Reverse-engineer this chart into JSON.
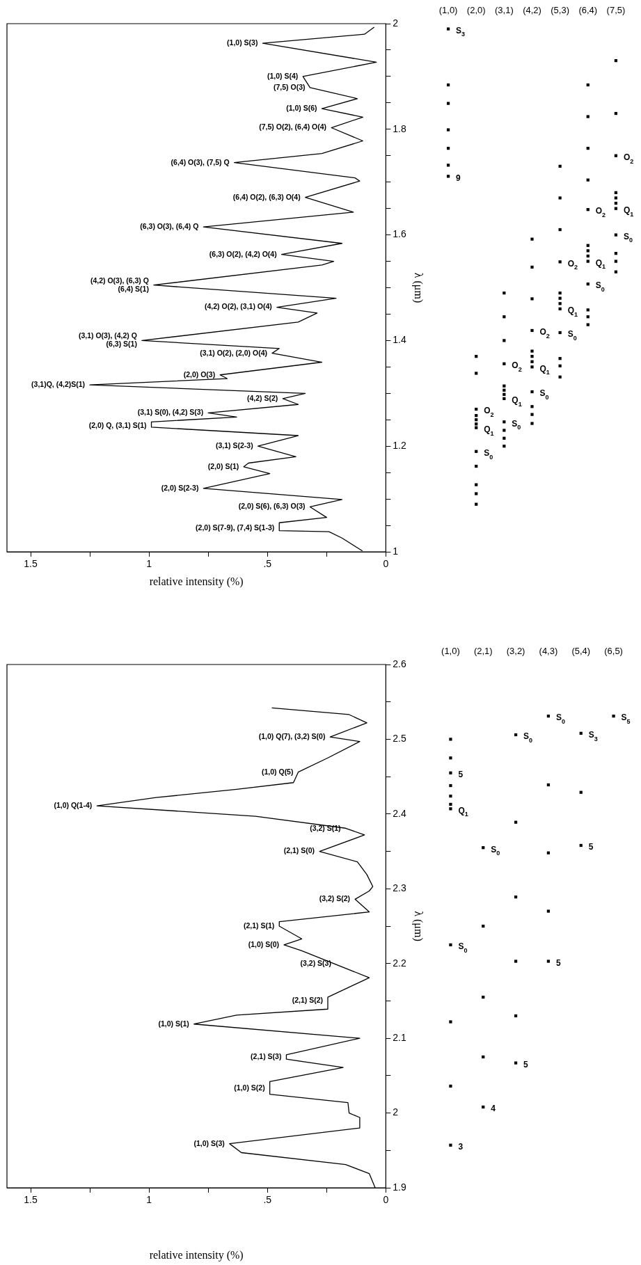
{
  "chart_data": [
    {
      "type": "line",
      "orientation": "horizontal",
      "xlabel": "relative intensity (%)",
      "ylabel": "λ (μm)",
      "color": "#000000",
      "x": [
        1.002,
        1.026,
        1.038,
        1.04,
        1.055,
        1.065,
        1.085,
        1.099,
        1.12,
        1.148,
        1.161,
        1.168,
        1.18,
        1.2,
        1.22,
        1.236,
        1.246,
        1.255,
        1.263,
        1.279,
        1.29,
        1.3,
        1.316,
        1.328,
        1.335,
        1.359,
        1.376,
        1.385,
        1.4,
        1.435,
        1.452,
        1.463,
        1.48,
        1.505,
        1.543,
        1.55,
        1.563,
        1.584,
        1.615,
        1.643,
        1.671,
        1.702,
        1.708,
        1.737,
        1.754,
        1.778,
        1.803,
        1.823,
        1.839,
        1.858,
        1.879,
        1.9,
        1.927,
        1.963,
        1.98,
        1.993
      ],
      "values": [
        0.1,
        0.185,
        0.24,
        0.45,
        0.45,
        0.25,
        0.32,
        0.185,
        0.77,
        0.49,
        0.6,
        0.58,
        0.38,
        0.54,
        0.37,
        0.99,
        0.99,
        0.63,
        0.75,
        0.37,
        0.435,
        0.34,
        1.25,
        0.67,
        0.7,
        0.27,
        0.48,
        0.45,
        1.03,
        0.37,
        0.29,
        0.46,
        0.21,
        0.98,
        0.27,
        0.22,
        0.44,
        0.185,
        0.77,
        0.137,
        0.34,
        0.11,
        0.13,
        0.64,
        0.27,
        0.097,
        0.23,
        0.097,
        0.27,
        0.12,
        0.32,
        0.35,
        0.04,
        0.52,
        0.09,
        0.05
      ],
      "xlim": [
        1.6,
        0
      ],
      "xticks": [
        0,
        {
          "value": 0.25,
          "label": null
        },
        {
          "value": 0.5,
          "label": ".5"
        },
        {
          "value": 0.75,
          "label": null
        },
        1,
        {
          "value": 1.25,
          "label": null
        },
        1.5
      ],
      "ylim": [
        1,
        2
      ],
      "yticks": [
        1,
        {
          "value": 1.05,
          "label": null
        },
        {
          "value": 1.1,
          "label": null
        },
        {
          "value": 1.15,
          "label": null
        },
        1.2,
        {
          "value": 1.25,
          "label": null
        },
        {
          "value": 1.3,
          "label": null
        },
        {
          "value": 1.35,
          "label": null
        },
        1.4,
        {
          "value": 1.45,
          "label": null
        },
        {
          "value": 1.5,
          "label": null
        },
        {
          "value": 1.55,
          "label": null
        },
        1.6,
        {
          "value": 1.65,
          "label": null
        },
        {
          "value": 1.7,
          "label": null
        },
        {
          "value": 1.75,
          "label": null
        },
        1.8,
        {
          "value": 1.85,
          "label": null
        },
        {
          "value": 1.9,
          "label": null
        },
        {
          "value": 1.95,
          "label": null
        },
        2
      ],
      "annotations": [
        {
          "text": "(2,0) S(7-9), (7,4) S(1-3)",
          "x": 0.45,
          "y": 1.045
        },
        {
          "text": "(2,0) S(6), (6,3) O(3)",
          "x": 0.32,
          "y": 1.085
        },
        {
          "text": "(2,0) S(2-3)",
          "x": 0.77,
          "y": 1.12
        },
        {
          "text": "(2,0) S(1)",
          "x": 0.6,
          "y": 1.161
        },
        {
          "text": "(3,1) S(2-3)",
          "x": 0.54,
          "y": 1.2
        },
        {
          "text": "(2,0) Q, (3,1) S(1)",
          "x": 0.99,
          "y": 1.238
        },
        {
          "text": "(3,1) S(0), (4,2) S(3)",
          "x": 0.75,
          "y": 1.263
        },
        {
          "text": "(4,2) S(2)",
          "x": 0.435,
          "y": 1.29
        },
        {
          "text": "(3,1)Q, (4,2)S(1)",
          "x": 1.25,
          "y": 1.316
        },
        {
          "text": "(2,0) O(3)",
          "x": 0.7,
          "y": 1.335
        },
        {
          "text": "(3,1) O(2), (2,0) O(4)",
          "x": 0.48,
          "y": 1.376
        },
        {
          "text": "(3,1) O(3), (4,2) Q\n(6,3) S(1)",
          "x": 1.03,
          "y": 1.4
        },
        {
          "text": "(4,2) O(2), (3,1) O(4)",
          "x": 0.46,
          "y": 1.463
        },
        {
          "text": "(4,2) O(3), (6,3) Q\n(6,4) S(1)",
          "x": 0.98,
          "y": 1.505
        },
        {
          "text": "(6,3) O(2), (4,2) O(4)",
          "x": 0.44,
          "y": 1.563
        },
        {
          "text": "(6,3) O(3), (6,4) Q",
          "x": 0.77,
          "y": 1.615
        },
        {
          "text": "(6,4) O(2), (6,3) O(4)",
          "x": 0.34,
          "y": 1.671
        },
        {
          "text": "(6,4) O(3), (7,5) Q",
          "x": 0.64,
          "y": 1.737
        },
        {
          "text": "(7,5) O(2), (6,4) O(4)",
          "x": 0.23,
          "y": 1.803
        },
        {
          "text": "(1,0) S(6)",
          "x": 0.27,
          "y": 1.839
        },
        {
          "text": "(7,5) O(3)",
          "x": 0.32,
          "y": 1.879
        },
        {
          "text": "(1,0) S(4)",
          "x": 0.35,
          "y": 1.9
        },
        {
          "text": "(1,0) S(3)",
          "x": 0.52,
          "y": 1.963
        }
      ]
    },
    {
      "type": "scatter",
      "marker": "square",
      "tick_labels": "x",
      "ylim": [
        1,
        2
      ],
      "categories": [
        "(1,0)",
        "(2,0)",
        "(3,1)",
        "(4,2)",
        "(5,3)",
        "(6,4)",
        "(7,5)"
      ],
      "series": [
        {
          "color": "#000000",
          "x": [
            "(1,0)",
            "(1,0)",
            "(1,0)",
            "(1,0)",
            "(1,0)",
            "(1,0)",
            "(1,0)"
          ],
          "values": [
            1.99,
            1.884,
            1.849,
            1.799,
            1.764,
            1.732,
            1.711
          ]
        },
        {
          "color": "#000000",
          "x": [
            "(2,0)",
            "(2,0)",
            "(2,0)",
            "(2,0)",
            "(2,0)",
            "(2,0)",
            "(2,0)",
            "(2,0)",
            "(2,0)",
            "(2,0)",
            "(2,0)",
            "(2,0)"
          ],
          "values": [
            1.09,
            1.11,
            1.127,
            1.162,
            1.19,
            1.235,
            1.242,
            1.25,
            1.258,
            1.27,
            1.338,
            1.37
          ]
        },
        {
          "color": "#000000",
          "x": [
            "(3,1)",
            "(3,1)",
            "(3,1)",
            "(3,1)",
            "(3,1)",
            "(3,1)",
            "(3,1)",
            "(3,1)",
            "(3,1)",
            "(3,1)",
            "(3,1)",
            "(3,1)"
          ],
          "values": [
            1.2,
            1.215,
            1.23,
            1.246,
            1.29,
            1.298,
            1.306,
            1.314,
            1.356,
            1.4,
            1.445,
            1.49
          ]
        },
        {
          "color": "#000000",
          "x": [
            "(4,2)",
            "(4,2)",
            "(4,2)",
            "(4,2)",
            "(4,2)",
            "(4,2)",
            "(4,2)",
            "(4,2)",
            "(4,2)",
            "(4,2)",
            "(4,2)",
            "(4,2)"
          ],
          "values": [
            1.243,
            1.26,
            1.275,
            1.303,
            1.35,
            1.36,
            1.37,
            1.38,
            1.419,
            1.479,
            1.539,
            1.592
          ]
        },
        {
          "color": "#000000",
          "x": [
            "(5,3)",
            "(5,3)",
            "(5,3)",
            "(5,3)",
            "(5,3)",
            "(5,3)",
            "(5,3)",
            "(5,3)",
            "(5,3)",
            "(5,3)",
            "(5,3)",
            "(5,3)"
          ],
          "values": [
            1.331,
            1.352,
            1.366,
            1.415,
            1.46,
            1.47,
            1.48,
            1.49,
            1.549,
            1.61,
            1.67,
            1.73
          ]
        },
        {
          "color": "#000000",
          "x": [
            "(6,4)",
            "(6,4)",
            "(6,4)",
            "(6,4)",
            "(6,4)",
            "(6,4)",
            "(6,4)",
            "(6,4)",
            "(6,4)",
            "(6,4)",
            "(6,4)",
            "(6,4)",
            "(6,4)"
          ],
          "values": [
            1.43,
            1.445,
            1.458,
            1.507,
            1.55,
            1.56,
            1.57,
            1.58,
            1.648,
            1.704,
            1.764,
            1.824,
            1.884
          ]
        },
        {
          "color": "#000000",
          "x": [
            "(7,5)",
            "(7,5)",
            "(7,5)",
            "(7,5)",
            "(7,5)",
            "(7,5)",
            "(7,5)",
            "(7,5)",
            "(7,5)",
            "(7,5)",
            "(7,5)"
          ],
          "values": [
            1.53,
            1.55,
            1.565,
            1.6,
            1.65,
            1.66,
            1.67,
            1.68,
            1.75,
            1.83,
            1.93
          ]
        }
      ],
      "annotations": [
        {
          "text": "S$_{3}$",
          "x": "(1,0)",
          "y": 1.99
        },
        {
          "text": "9",
          "x": "(1,0)",
          "y": 1.711
        },
        {
          "text": "S$_{0}$",
          "x": "(2,0)",
          "y": 1.19
        },
        {
          "text": "Q$_{1}$",
          "x": "(2,0)",
          "y": 1.235
        },
        {
          "text": "O$_{2}$",
          "x": "(2,0)",
          "y": 1.27
        },
        {
          "text": "S$_{0}$",
          "x": "(3,1)",
          "y": 1.246
        },
        {
          "text": "Q$_{1}$",
          "x": "(3,1)",
          "y": 1.29
        },
        {
          "text": "O$_{2}$",
          "x": "(3,1)",
          "y": 1.356
        },
        {
          "text": "S$_{0}$",
          "x": "(4,2)",
          "y": 1.303
        },
        {
          "text": "Q$_{1}$",
          "x": "(4,2)",
          "y": 1.35
        },
        {
          "text": "O$_{2}$",
          "x": "(4,2)",
          "y": 1.419
        },
        {
          "text": "S$_{0}$",
          "x": "(5,3)",
          "y": 1.415
        },
        {
          "text": "Q$_{1}$",
          "x": "(5,3)",
          "y": 1.46
        },
        {
          "text": "O$_{2}$",
          "x": "(5,3)",
          "y": 1.549
        },
        {
          "text": "S$_{0}$",
          "x": "(6,4)",
          "y": 1.507
        },
        {
          "text": "Q$_{1}$",
          "x": "(6,4)",
          "y": 1.55
        },
        {
          "text": "O$_{2}$",
          "x": "(6,4)",
          "y": 1.648
        },
        {
          "text": "S$_{0}$",
          "x": "(7,5)",
          "y": 1.6
        },
        {
          "text": "Q$_{1}$",
          "x": "(7,5)",
          "y": 1.65
        },
        {
          "text": "O$_{2}$",
          "x": "(7,5)",
          "y": 1.75
        }
      ]
    },
    {
      "type": "line",
      "orientation": "horizontal",
      "xlabel": "relative intensity (%)",
      "ylabel": "λ (μm)",
      "color": "#000000",
      "x": [
        1.9,
        1.919,
        1.931,
        1.947,
        1.959,
        1.98,
        1.994,
        2.0,
        2.014,
        2.025,
        2.042,
        2.061,
        2.072,
        2.078,
        2.1,
        2.119,
        2.131,
        2.139,
        2.155,
        2.181,
        2.217,
        2.225,
        2.233,
        2.25,
        2.256,
        2.269,
        2.286,
        2.297,
        2.303,
        2.319,
        2.336,
        2.35,
        2.372,
        2.381,
        2.397,
        2.411,
        2.422,
        2.433,
        2.442,
        2.456,
        2.475,
        2.497,
        2.503,
        2.522,
        2.533,
        2.542
      ],
      "values": [
        0.045,
        0.07,
        0.17,
        0.61,
        0.66,
        0.11,
        0.11,
        0.155,
        0.16,
        0.49,
        0.49,
        0.18,
        0.42,
        0.42,
        0.11,
        0.81,
        0.63,
        0.245,
        0.245,
        0.07,
        0.355,
        0.43,
        0.355,
        0.45,
        0.45,
        0.07,
        0.13,
        0.07,
        0.055,
        0.08,
        0.12,
        0.28,
        0.09,
        0.17,
        0.55,
        1.22,
        0.97,
        0.63,
        0.39,
        0.37,
        0.245,
        0.11,
        0.235,
        0.08,
        0.155,
        0.48
      ],
      "xlim": [
        1.6,
        0
      ],
      "xticks": [
        0,
        {
          "value": 0.25,
          "label": null
        },
        {
          "value": 0.5,
          "label": ".5"
        },
        {
          "value": 0.75,
          "label": null
        },
        1,
        {
          "value": 1.25,
          "label": null
        },
        1.5
      ],
      "ylim": [
        1.9,
        2.6
      ],
      "yticks": [
        1.9,
        {
          "value": 1.95,
          "label": null
        },
        2,
        {
          "value": 2.05,
          "label": null
        },
        2.1,
        {
          "value": 2.15,
          "label": null
        },
        2.2,
        {
          "value": 2.25,
          "label": null
        },
        2.3,
        {
          "value": 2.35,
          "label": null
        },
        2.4,
        {
          "value": 2.45,
          "label": null
        },
        2.5,
        {
          "value": 2.55,
          "label": null
        },
        2.6
      ],
      "annotations": [
        {
          "text": "(1,0) S(3)",
          "x": 0.66,
          "y": 1.959
        },
        {
          "text": "(1,0) S(2)",
          "x": 0.49,
          "y": 2.033
        },
        {
          "text": "(2,1) S(3)",
          "x": 0.42,
          "y": 2.075
        },
        {
          "text": "(1,0) S(1)",
          "x": 0.81,
          "y": 2.119
        },
        {
          "text": "(2,1) S(2)",
          "x": 0.245,
          "y": 2.15
        },
        {
          "text": "(3,2) S(3)",
          "x": 0.21,
          "y": 2.2
        },
        {
          "text": "(1,0) S(0)",
          "x": 0.43,
          "y": 2.225
        },
        {
          "text": "(2,1) S(1)",
          "x": 0.45,
          "y": 2.25
        },
        {
          "text": "(3,2) S(2)",
          "x": 0.13,
          "y": 2.286
        },
        {
          "text": "(2,1) S(0)",
          "x": 0.28,
          "y": 2.35
        },
        {
          "text": "(3,2) S(1)",
          "x": 0.17,
          "y": 2.38
        },
        {
          "text": "(1,0) Q(1-4)",
          "x": 1.22,
          "y": 2.411
        },
        {
          "text": "(1,0) Q(5)",
          "x": 0.37,
          "y": 2.456
        },
        {
          "text": "(1,0) Q(7), (3,2) S(0)",
          "x": 0.235,
          "y": 2.503
        }
      ]
    },
    {
      "type": "scatter",
      "marker": "square",
      "tick_labels": "x",
      "ylim": [
        1.9,
        2.6
      ],
      "categories": [
        "(1,0)",
        "(2,1)",
        "(3,2)",
        "(4,3)",
        "(5,4)",
        "(6,5)"
      ],
      "series": [
        {
          "color": "#000000",
          "x": [
            "(1,0)",
            "(1,0)",
            "(1,0)",
            "(1,0)",
            "(1,0)",
            "(1,0)",
            "(1,0)",
            "(1,0)",
            "(1,0)",
            "(1,0)",
            "(1,0)"
          ],
          "values": [
            1.957,
            2.036,
            2.122,
            2.225,
            2.407,
            2.413,
            2.424,
            2.438,
            2.455,
            2.475,
            2.5
          ]
        },
        {
          "color": "#000000",
          "x": [
            "(2,1)",
            "(2,1)",
            "(2,1)",
            "(2,1)",
            "(2,1)"
          ],
          "values": [
            2.008,
            2.075,
            2.155,
            2.25,
            2.355
          ]
        },
        {
          "color": "#000000",
          "x": [
            "(3,2)",
            "(3,2)",
            "(3,2)",
            "(3,2)",
            "(3,2)",
            "(3,2)"
          ],
          "values": [
            2.067,
            2.13,
            2.203,
            2.289,
            2.389,
            2.506
          ]
        },
        {
          "color": "#000000",
          "x": [
            "(4,3)",
            "(4,3)",
            "(4,3)",
            "(4,3)",
            "(4,3)"
          ],
          "values": [
            2.203,
            2.27,
            2.348,
            2.439,
            2.531
          ]
        },
        {
          "color": "#000000",
          "x": [
            "(5,4)",
            "(5,4)",
            "(5,4)"
          ],
          "values": [
            2.358,
            2.429,
            2.508
          ]
        },
        {
          "color": "#000000",
          "x": [
            "(6,5)"
          ],
          "values": [
            2.531
          ]
        }
      ],
      "annotations": [
        {
          "text": "3",
          "x": "(1,0)",
          "y": 1.957
        },
        {
          "text": "S$_{0}$",
          "x": "(1,0)",
          "y": 2.225
        },
        {
          "text": "Q$_{1}$",
          "x": "(1,0)",
          "y": 2.407
        },
        {
          "text": "5",
          "x": "(1,0)",
          "y": 2.455
        },
        {
          "text": "4",
          "x": "(2,1)",
          "y": 2.008
        },
        {
          "text": "S$_{0}$",
          "x": "(2,1)",
          "y": 2.355
        },
        {
          "text": "5",
          "x": "(3,2)",
          "y": 2.067
        },
        {
          "text": "S$_{0}$",
          "x": "(3,2)",
          "y": 2.506
        },
        {
          "text": "5",
          "x": "(4,3)",
          "y": 2.203
        },
        {
          "text": "S$_{0}$",
          "x": "(4,3)",
          "y": 2.531
        },
        {
          "text": "5",
          "x": "(5,4)",
          "y": 2.358
        },
        {
          "text": "S$_{3}$",
          "x": "(5,4)",
          "y": 2.508
        },
        {
          "text": "S$_{5}$",
          "x": "(6,5)",
          "y": 2.531
        }
      ]
    }
  ]
}
